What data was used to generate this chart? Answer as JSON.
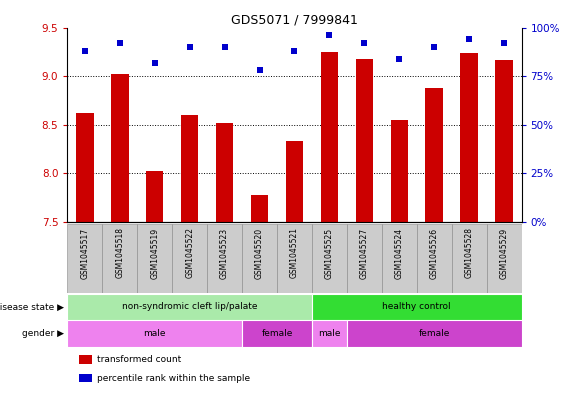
{
  "title": "GDS5071 / 7999841",
  "samples": [
    "GSM1045517",
    "GSM1045518",
    "GSM1045519",
    "GSM1045522",
    "GSM1045523",
    "GSM1045520",
    "GSM1045521",
    "GSM1045525",
    "GSM1045527",
    "GSM1045524",
    "GSM1045526",
    "GSM1045528",
    "GSM1045529"
  ],
  "bar_values": [
    8.62,
    9.02,
    8.02,
    8.6,
    8.52,
    7.78,
    8.33,
    9.25,
    9.18,
    8.55,
    8.88,
    9.24,
    9.17
  ],
  "dot_values": [
    88,
    92,
    82,
    90,
    90,
    78,
    88,
    96,
    92,
    84,
    90,
    94,
    92
  ],
  "ymin": 7.5,
  "ymax": 9.5,
  "y2min": 0,
  "y2max": 100,
  "yticks": [
    7.5,
    8.0,
    8.5,
    9.0,
    9.5
  ],
  "y2ticks": [
    0,
    25,
    50,
    75,
    100
  ],
  "y2ticklabels": [
    "0%",
    "25%",
    "50%",
    "75%",
    "100%"
  ],
  "bar_color": "#cc0000",
  "dot_color": "#0000cc",
  "bar_width": 0.5,
  "disease_state_groups": [
    {
      "label": "non-syndromic cleft lip/palate",
      "start": 0,
      "end": 7,
      "color": "#aaeaaa"
    },
    {
      "label": "healthy control",
      "start": 7,
      "end": 13,
      "color": "#33dd33"
    }
  ],
  "gender_groups": [
    {
      "label": "male",
      "start": 0,
      "end": 5,
      "color": "#ee82ee"
    },
    {
      "label": "female",
      "start": 5,
      "end": 7,
      "color": "#cc44cc"
    },
    {
      "label": "male",
      "start": 7,
      "end": 8,
      "color": "#ee82ee"
    },
    {
      "label": "female",
      "start": 8,
      "end": 13,
      "color": "#cc44cc"
    }
  ],
  "row_labels": [
    "disease state",
    "gender"
  ],
  "legend_items": [
    {
      "color": "#cc0000",
      "label": "transformed count"
    },
    {
      "color": "#0000cc",
      "label": "percentile rank within the sample"
    }
  ],
  "tick_label_color": "#cc0000",
  "y2_label_color": "#0000cc",
  "grid_color": "black",
  "grid_style": "dotted",
  "bg_color": "#ffffff",
  "sample_box_color": "#cccccc",
  "sample_box_edge": "#888888"
}
